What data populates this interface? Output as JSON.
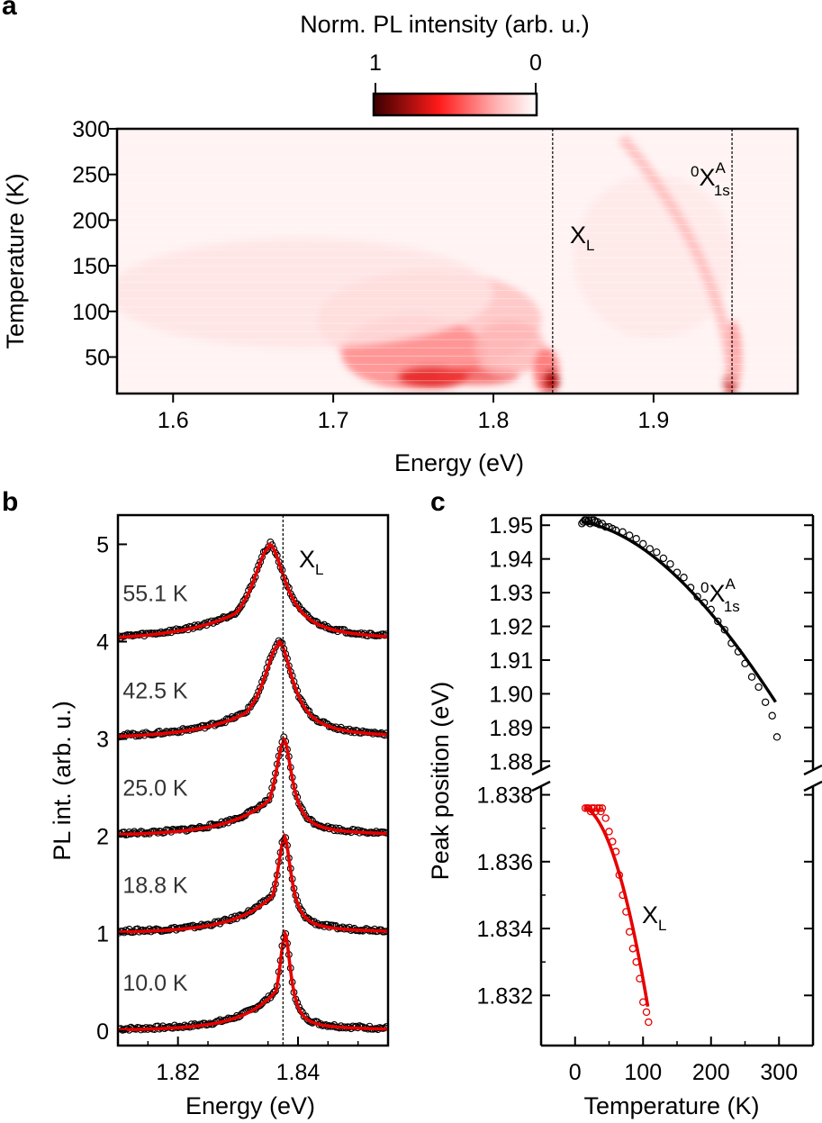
{
  "panels": {
    "a": "a",
    "b": "b",
    "c": "c"
  },
  "colors": {
    "map_high": "#3a0000",
    "map_mid": "#ff1a1a",
    "map_low": "#ffffff",
    "fit_line": "#e60000",
    "data_marker": "#000000",
    "guide_line": "#000000"
  },
  "chart_data": [
    {
      "type": "heatmap",
      "panel": "a",
      "colorbar": {
        "label": "Norm. PL intensity (arb. u.)",
        "ticks": [
          "1",
          "0"
        ],
        "range": [
          1,
          0
        ]
      },
      "xlabel": "Energy (eV)",
      "ylabel": "Temperature (K)",
      "xlim": [
        1.565,
        1.99
      ],
      "ylim": [
        10,
        300
      ],
      "xticks": [
        1.6,
        1.7,
        1.8,
        1.9
      ],
      "xtick_labels": [
        "1.6",
        "1.7",
        "1.8",
        "1.9"
      ],
      "yticks": [
        50,
        100,
        150,
        200,
        250,
        300
      ],
      "ytick_labels": [
        "50",
        "100",
        "150",
        "200",
        "250",
        "300"
      ],
      "guides": [
        1.837,
        1.949
      ],
      "annotations": [
        {
          "label": "X",
          "subscript": "L",
          "x": 1.838,
          "y": 195
        },
        {
          "prefix": "0",
          "label": "X",
          "superscript": "A",
          "subscript": "1s",
          "x": 1.915,
          "y": 262
        }
      ]
    },
    {
      "type": "line",
      "panel": "b",
      "xlabel": "Energy (eV)",
      "ylabel": "PL int. (arb. u.)",
      "xlim": [
        1.81,
        1.855
      ],
      "ylim": [
        -0.15,
        5.3
      ],
      "xticks": [
        1.82,
        1.84
      ],
      "xtick_labels": [
        "1.82",
        "1.84"
      ],
      "yticks": [
        0,
        1,
        2,
        3,
        4,
        5
      ],
      "ytick_labels": [
        "0",
        "1",
        "2",
        "3",
        "4",
        "5"
      ],
      "guide": 1.8375,
      "guide_annotation": {
        "label": "X",
        "subscript": "L"
      },
      "series": [
        {
          "temperature": "10.0 K",
          "offset": 0,
          "peak": 1.8378,
          "width": 0.0012,
          "tail": 0.0055,
          "right_width": 0.0012,
          "wing": 0.035
        },
        {
          "temperature": "18.8 K",
          "offset": 1,
          "peak": 1.8377,
          "width": 0.0015,
          "tail": 0.006,
          "right_width": 0.0014,
          "wing": 0.045
        },
        {
          "temperature": "25.0 K",
          "offset": 2,
          "peak": 1.8376,
          "width": 0.0018,
          "tail": 0.0065,
          "right_width": 0.0017,
          "wing": 0.045
        },
        {
          "temperature": "42.5 K",
          "offset": 3,
          "peak": 1.8368,
          "width": 0.0032,
          "tail": 0.0075,
          "right_width": 0.0028,
          "wing": 0.05
        },
        {
          "temperature": "55.1 K",
          "offset": 4,
          "peak": 1.8352,
          "width": 0.0034,
          "tail": 0.0085,
          "right_width": 0.0033,
          "wing": 0.07
        }
      ]
    },
    {
      "type": "scatter",
      "panel": "c",
      "xlabel": "Temperature (K)",
      "ylabel": "Peak position (eV)",
      "xlim": [
        -50,
        350
      ],
      "xticks": [
        0,
        100,
        200,
        300
      ],
      "xtick_labels": [
        "0",
        "100",
        "200",
        "300"
      ],
      "broken_axis": true,
      "upper": {
        "ylim": [
          1.875,
          1.953
        ],
        "yticks": [
          1.88,
          1.89,
          1.9,
          1.91,
          1.92,
          1.93,
          1.94,
          1.95
        ],
        "ytick_labels": [
          "1.88",
          "1.89",
          "1.90",
          "1.91",
          "1.92",
          "1.93",
          "1.94",
          "1.95"
        ]
      },
      "lower": {
        "ylim": [
          1.8305,
          1.8385
        ],
        "yticks": [
          1.832,
          1.834,
          1.836,
          1.838
        ],
        "ytick_labels": [
          "1.832",
          "1.834",
          "1.836",
          "1.838"
        ]
      },
      "series": [
        {
          "name": "0X1s A",
          "label_parts": {
            "prefix": "0",
            "label": "X",
            "superscript": "A",
            "subscript": "1s"
          },
          "x": [
            10,
            12,
            14,
            16,
            18,
            20,
            22,
            25,
            28,
            30,
            33,
            36,
            40,
            45,
            50,
            55,
            60,
            70,
            80,
            90,
            100,
            110,
            120,
            130,
            140,
            150,
            160,
            170,
            180,
            190,
            200,
            210,
            220,
            230,
            240,
            250,
            260,
            270,
            280,
            290,
            297
          ],
          "y": [
            1.9505,
            1.951,
            1.9515,
            1.9515,
            1.951,
            1.9515,
            1.9505,
            1.9515,
            1.9515,
            1.951,
            1.951,
            1.9502,
            1.9505,
            1.9495,
            1.9495,
            1.949,
            1.9485,
            1.948,
            1.947,
            1.946,
            1.9445,
            1.943,
            1.942,
            1.9402,
            1.9385,
            1.936,
            1.9345,
            1.9315,
            1.9288,
            1.927,
            1.925,
            1.9215,
            1.919,
            1.915,
            1.9125,
            1.909,
            1.905,
            1.902,
            1.8975,
            1.8935,
            1.8872
          ]
        },
        {
          "name": "XL",
          "label_parts": {
            "label": "X",
            "subscript": "L"
          },
          "x": [
            15,
            18,
            20,
            23,
            25,
            28,
            30,
            33,
            36,
            38,
            40,
            45,
            50,
            55,
            60,
            65,
            70,
            75,
            80,
            85,
            90,
            95,
            100,
            105,
            108
          ],
          "y": [
            1.8376,
            1.8376,
            1.8376,
            1.8375,
            1.8376,
            1.8376,
            1.8375,
            1.8376,
            1.8376,
            1.8375,
            1.8376,
            1.8373,
            1.8369,
            1.8366,
            1.8363,
            1.8356,
            1.835,
            1.8345,
            1.8339,
            1.8334,
            1.833,
            1.8325,
            1.8318,
            1.8315,
            1.8312
          ]
        }
      ]
    }
  ]
}
